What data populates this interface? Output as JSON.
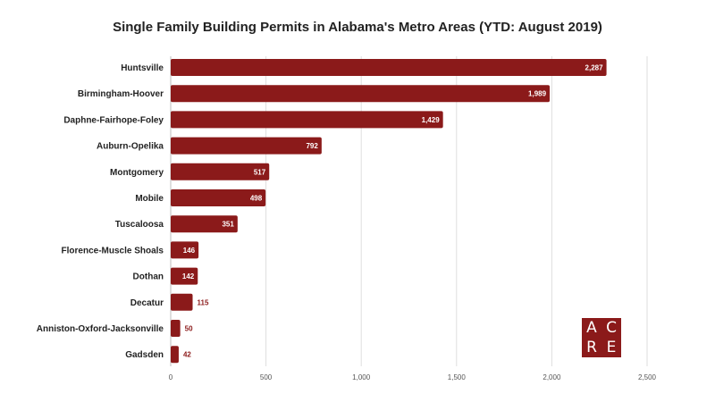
{
  "chart_data": {
    "type": "bar",
    "orientation": "horizontal",
    "title": "Single Family Building Permits in Alabama's Metro Areas (YTD: August 2019)",
    "categories": [
      "Huntsville",
      "Birmingham-Hoover",
      "Daphne-Fairhope-Foley",
      "Auburn-Opelika",
      "Montgomery",
      "Mobile",
      "Tuscaloosa",
      "Florence-Muscle Shoals",
      "Dothan",
      "Decatur",
      "Anniston-Oxford-Jacksonville",
      "Gadsden"
    ],
    "values": [
      2287,
      1989,
      1429,
      792,
      517,
      498,
      351,
      146,
      142,
      115,
      50,
      42
    ],
    "value_labels": [
      "2,287",
      "1,989",
      "1,429",
      "792",
      "517",
      "498",
      "351",
      "146",
      "142",
      "115",
      "50",
      "42"
    ],
    "x_ticks": [
      0,
      500,
      1000,
      1500,
      2000,
      2500
    ],
    "x_tick_labels": [
      "0",
      "500",
      "1,000",
      "1,500",
      "2,000",
      "2,500"
    ],
    "xlim": [
      0,
      2500
    ],
    "grid": "vertical",
    "legend": "none",
    "bar_color": "#8b1a1a"
  },
  "logo": {
    "letters": [
      "A",
      "C",
      "R",
      "E"
    ],
    "color": "#8b1a1a"
  }
}
